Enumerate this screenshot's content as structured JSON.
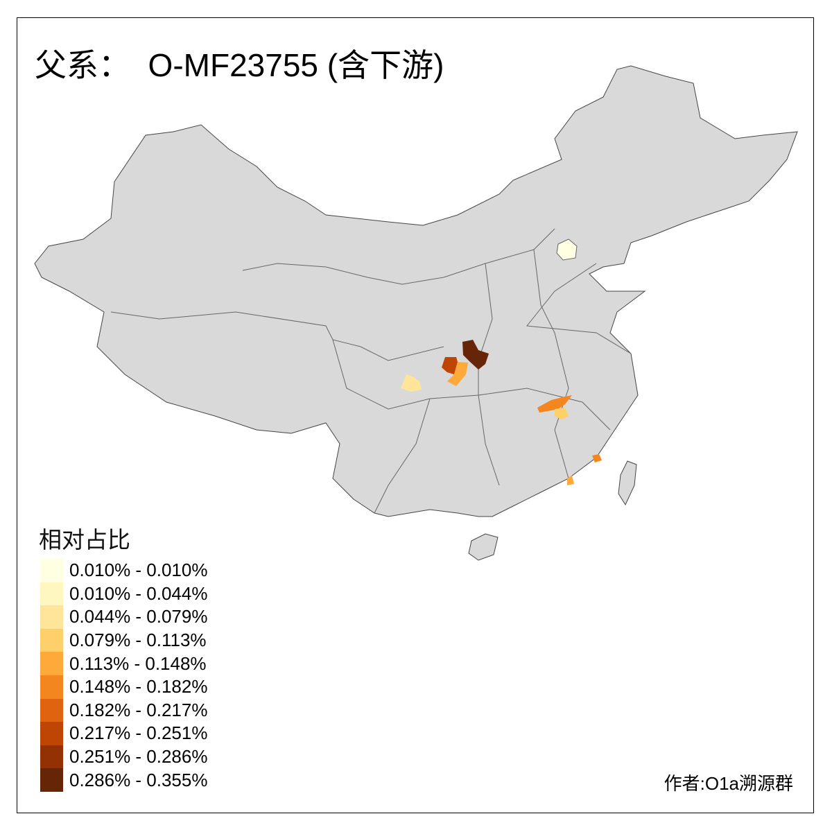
{
  "title": "父系：  O-MF23755 (含下游)",
  "legend": {
    "title": "相对占比",
    "items": [
      {
        "label": "0.010% - 0.010%",
        "color": "#FFFFE3"
      },
      {
        "label": "0.010% - 0.044%",
        "color": "#FFF6C0"
      },
      {
        "label": "0.044% - 0.079%",
        "color": "#FEE59A"
      },
      {
        "label": "0.079% - 0.113%",
        "color": "#FED06A"
      },
      {
        "label": "0.113% - 0.148%",
        "color": "#FDAA3A"
      },
      {
        "label": "0.148% - 0.182%",
        "color": "#F4861F"
      },
      {
        "label": "0.182% - 0.217%",
        "color": "#E0640F"
      },
      {
        "label": "0.217% - 0.251%",
        "color": "#BF4505"
      },
      {
        "label": "0.251% - 0.286%",
        "color": "#943104"
      },
      {
        "label": "0.286% - 0.355%",
        "color": "#662506"
      }
    ]
  },
  "map": {
    "base_color": "#D9D9D9",
    "border_color": "#666666"
  },
  "credit": "作者:O1a溯源群"
}
